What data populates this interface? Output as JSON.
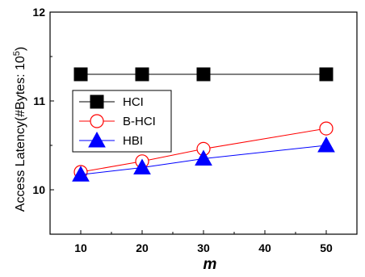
{
  "chart_data": {
    "type": "line",
    "title": "",
    "xlabel": "m",
    "ylabel": "Access Latency(#Bytes: 10",
    "ylabel_exponent": "5",
    "ylabel_close": ")",
    "xlim": [
      5,
      55
    ],
    "ylim": [
      9.5,
      12
    ],
    "x_ticks": [
      10,
      20,
      30,
      40,
      50
    ],
    "y_ticks": [
      10,
      11,
      12
    ],
    "x": [
      10,
      20,
      30,
      50
    ],
    "legend_position": "upper-left",
    "grid": false,
    "series": [
      {
        "name": "HCI",
        "marker": "square",
        "color": "#000000",
        "fill": "#000000",
        "values": [
          11.3,
          11.3,
          11.3,
          11.3
        ]
      },
      {
        "name": "B-HCI",
        "marker": "circle",
        "color": "#ff0000",
        "fill": "#ffffff",
        "values": [
          10.2,
          10.32,
          10.46,
          10.69
        ]
      },
      {
        "name": "HBI",
        "marker": "triangle",
        "color": "#0000ff",
        "fill": "#0000ff",
        "values": [
          10.17,
          10.25,
          10.35,
          10.5
        ]
      }
    ]
  }
}
